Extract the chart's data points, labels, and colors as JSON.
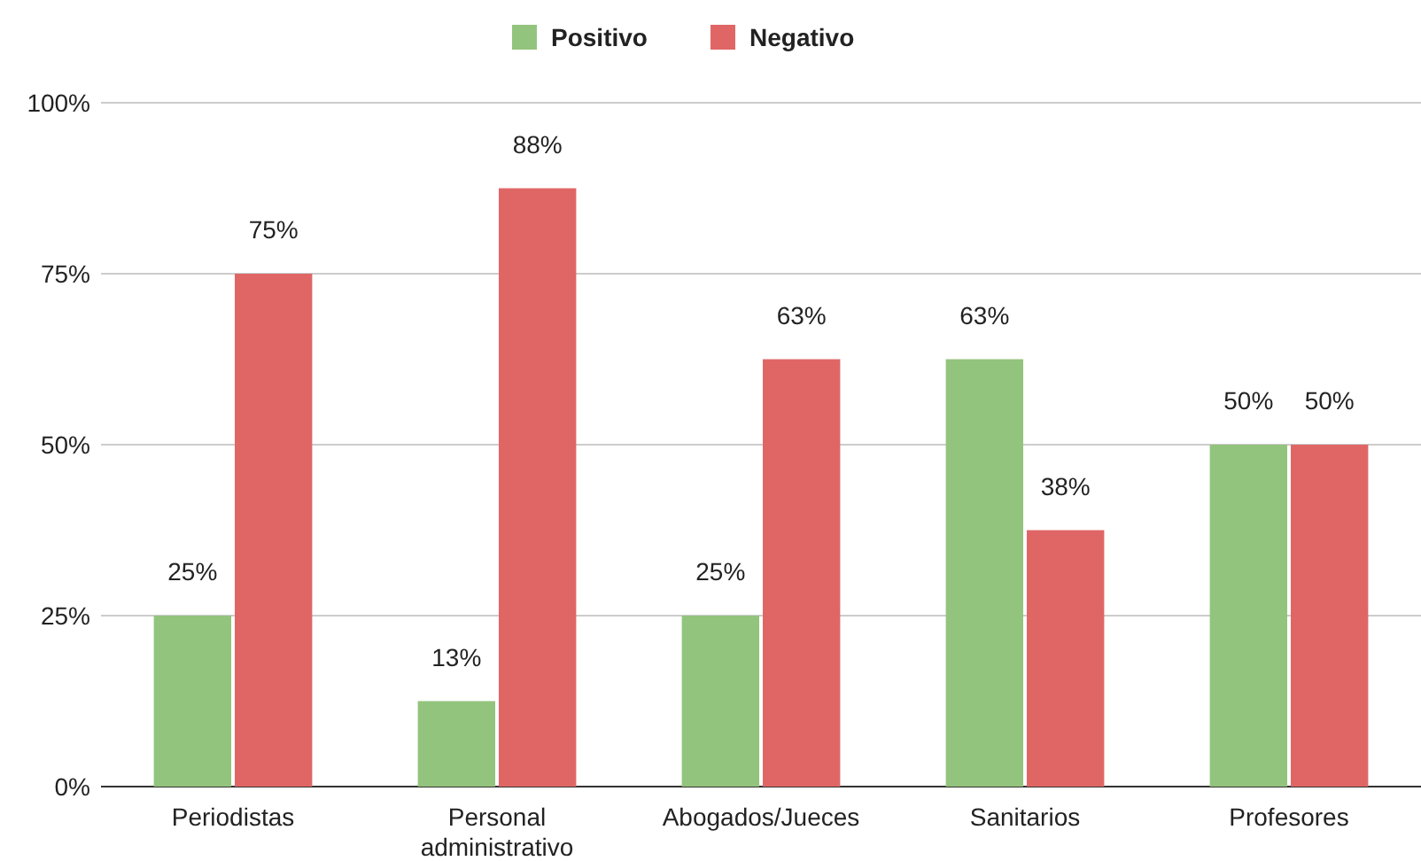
{
  "chart_data": {
    "type": "bar",
    "categories": [
      "Periodistas",
      "Personal administrativo",
      "Abogados/Jueces",
      "Sanitarios",
      "Profesores"
    ],
    "series": [
      {
        "name": "Positivo",
        "color": "#93c47d",
        "values": [
          25,
          12.5,
          25,
          62.5,
          50
        ],
        "value_labels": [
          "25%",
          "13%",
          "25%",
          "63%",
          "50%"
        ]
      },
      {
        "name": "Negativo",
        "color": "#e06666",
        "values": [
          75,
          87.5,
          62.5,
          37.5,
          50
        ],
        "value_labels": [
          "75%",
          "88%",
          "63%",
          "38%",
          "50%"
        ]
      }
    ],
    "ylim": [
      0,
      100
    ],
    "yticks": [
      {
        "value": 0,
        "label": "0%"
      },
      {
        "value": 25,
        "label": "25%"
      },
      {
        "value": 50,
        "label": "50%"
      },
      {
        "value": 75,
        "label": "75%"
      },
      {
        "value": 100,
        "label": "100%"
      }
    ],
    "grid": "y",
    "legend": "top"
  }
}
